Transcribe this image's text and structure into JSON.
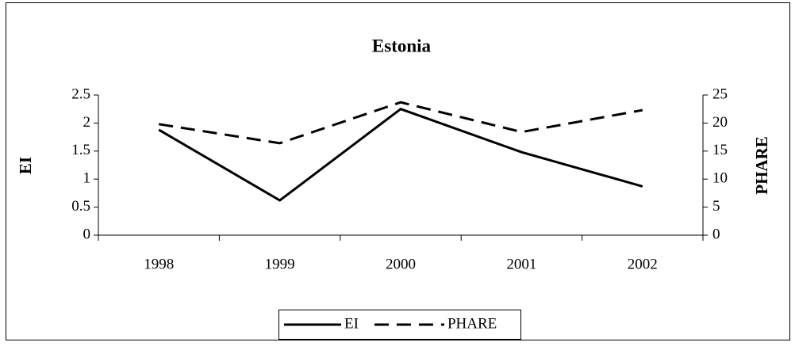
{
  "chart_data": {
    "type": "line",
    "title": "Estonia",
    "categories": [
      "1998",
      "1999",
      "2000",
      "2001",
      "2002"
    ],
    "ylabel": "EI",
    "y2label": "PHARE",
    "ylim": [
      0,
      2.5
    ],
    "yticks": [
      0,
      0.5,
      1,
      1.5,
      2,
      2.5
    ],
    "y2lim": [
      0,
      25
    ],
    "y2ticks": [
      0,
      5,
      10,
      15,
      20,
      25
    ],
    "legend": "bottom",
    "series": [
      {
        "name": "EI",
        "color": "#000000",
        "style": "solid",
        "values": [
          1.88,
          0.62,
          2.25,
          1.48,
          0.87
        ]
      },
      {
        "name": "PHARE",
        "color": "#000000",
        "style": "dashed",
        "axis": "y2",
        "values": [
          19.8,
          16.4,
          23.7,
          18.4,
          22.3
        ]
      }
    ]
  }
}
